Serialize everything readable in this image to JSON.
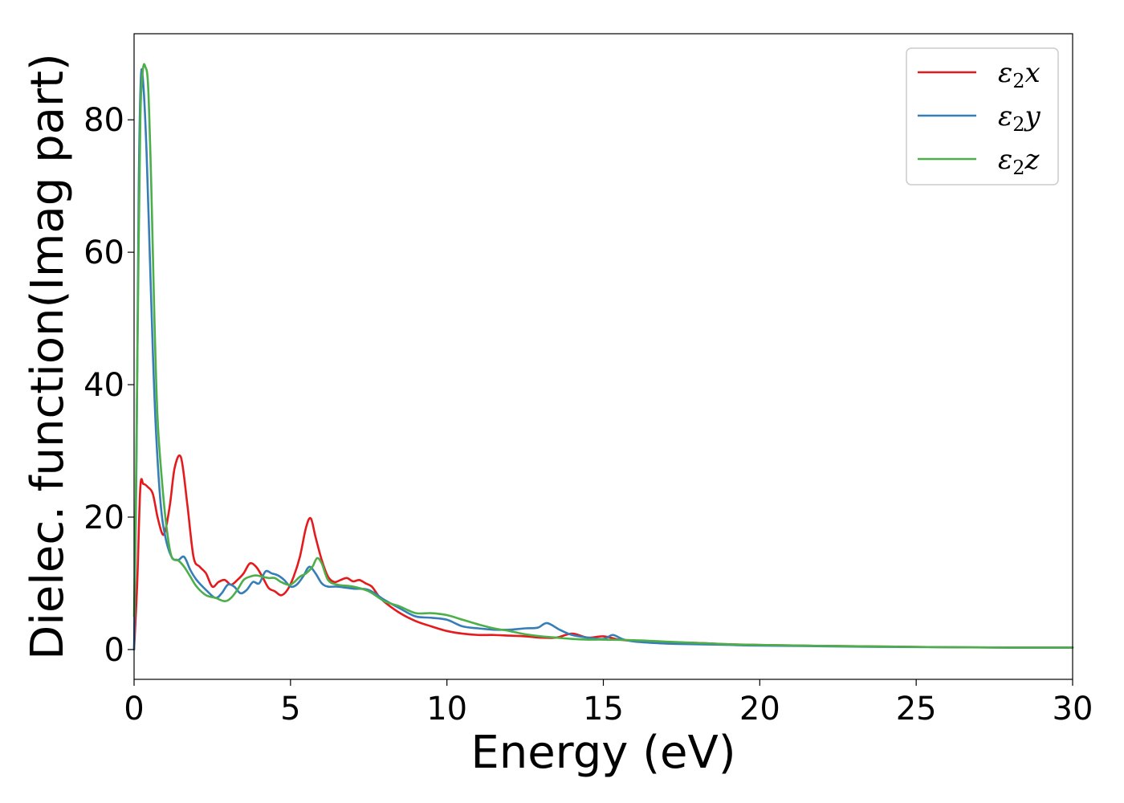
{
  "chart_data": {
    "type": "line",
    "title": "",
    "xlabel": "Energy (eV)",
    "ylabel": "Dielec. function(Imag part)",
    "xlim": [
      0,
      30
    ],
    "ylim": [
      -4.5,
      93
    ],
    "xticks": [
      0,
      5,
      10,
      15,
      20,
      25,
      30
    ],
    "yticks": [
      0,
      20,
      40,
      60,
      80
    ],
    "grid": false,
    "legend_position": "top-right",
    "series": [
      {
        "name": "ε2x",
        "legend_base": "ε",
        "legend_sub": "2",
        "legend_var": "x",
        "color": "#e41a1c",
        "x": [
          0,
          0.1,
          0.2,
          0.3,
          0.45,
          0.6,
          0.75,
          0.9,
          1.0,
          1.15,
          1.3,
          1.5,
          1.7,
          1.9,
          2.1,
          2.3,
          2.5,
          2.7,
          2.9,
          3.1,
          3.3,
          3.5,
          3.7,
          3.9,
          4.1,
          4.3,
          4.5,
          4.7,
          4.9,
          5.1,
          5.3,
          5.5,
          5.65,
          5.8,
          6.0,
          6.2,
          6.4,
          6.6,
          6.8,
          7.0,
          7.2,
          7.4,
          7.6,
          7.8,
          8.0,
          8.5,
          9.0,
          9.5,
          10.0,
          10.5,
          11.0,
          11.5,
          12.0,
          12.5,
          13.0,
          13.5,
          14.0,
          14.5,
          15.0,
          15.5,
          16.0,
          17.0,
          18.0,
          19.0,
          20.0,
          22.0,
          24.0,
          26.0,
          28.0,
          30.0
        ],
        "y": [
          0,
          10,
          24.5,
          25,
          24.5,
          23.5,
          20,
          17.5,
          18,
          22,
          27.5,
          29,
          22,
          14,
          12.5,
          11.5,
          9.5,
          10.2,
          10.5,
          9.8,
          10.5,
          11.5,
          13,
          12.5,
          11,
          9.3,
          8.8,
          8.2,
          9,
          11,
          14,
          18.5,
          19.8,
          17,
          13.5,
          11,
          10.2,
          10.5,
          10.8,
          10.3,
          10.5,
          10,
          9.5,
          8.2,
          7.2,
          5.5,
          4.3,
          3.5,
          2.8,
          2.4,
          2.2,
          2.2,
          2.1,
          2.0,
          1.8,
          1.8,
          2.4,
          1.8,
          2.0,
          1.5,
          1.3,
          1.1,
          1.0,
          0.8,
          0.7,
          0.55,
          0.45,
          0.35,
          0.3,
          0.3
        ]
      },
      {
        "name": "ε2y",
        "legend_base": "ε",
        "legend_sub": "2",
        "legend_var": "y",
        "color": "#377eb8",
        "x": [
          0,
          0.08,
          0.15,
          0.22,
          0.3,
          0.4,
          0.5,
          0.6,
          0.7,
          0.85,
          1.0,
          1.2,
          1.4,
          1.6,
          1.8,
          2.0,
          2.3,
          2.6,
          2.8,
          3.0,
          3.2,
          3.4,
          3.6,
          3.8,
          4.0,
          4.2,
          4.4,
          4.6,
          4.8,
          5.0,
          5.2,
          5.4,
          5.6,
          5.8,
          6.0,
          6.2,
          6.5,
          7.0,
          7.5,
          8.0,
          8.5,
          9.0,
          9.5,
          10.0,
          10.5,
          11.0,
          11.5,
          12.0,
          12.5,
          12.9,
          13.2,
          13.6,
          14.0,
          14.5,
          15.0,
          15.3,
          15.6,
          16.0,
          17.0,
          18.0,
          19.0,
          20.0,
          22.0,
          24.0,
          26.0,
          28.0,
          30.0
        ],
        "y": [
          0,
          30,
          70,
          86.5,
          85,
          75,
          60,
          45,
          33,
          22,
          17,
          14,
          13.5,
          14,
          12,
          10.5,
          9,
          7.8,
          8.5,
          9.8,
          9.5,
          8.5,
          9,
          10.2,
          10,
          11.8,
          11.5,
          11.2,
          10.5,
          9.5,
          9.8,
          11,
          12.5,
          11.5,
          10,
          9.5,
          9.5,
          9.2,
          9,
          7.5,
          6.2,
          5,
          4.8,
          4.5,
          3.5,
          3.2,
          3.0,
          3.0,
          3.2,
          3.3,
          4.0,
          3.0,
          2.2,
          1.8,
          1.6,
          2.2,
          1.6,
          1.2,
          0.9,
          0.8,
          0.7,
          0.6,
          0.5,
          0.4,
          0.35,
          0.3,
          0.3
        ]
      },
      {
        "name": "ε2z",
        "legend_base": "ε",
        "legend_sub": "2",
        "legend_var": "z",
        "color": "#4daf4a",
        "x": [
          0,
          0.05,
          0.12,
          0.2,
          0.28,
          0.36,
          0.45,
          0.55,
          0.65,
          0.75,
          0.9,
          1.05,
          1.2,
          1.4,
          1.6,
          1.8,
          2.0,
          2.3,
          2.6,
          2.9,
          3.1,
          3.3,
          3.5,
          3.7,
          3.9,
          4.1,
          4.3,
          4.5,
          4.7,
          5.0,
          5.3,
          5.5,
          5.7,
          5.85,
          6.0,
          6.2,
          6.5,
          7.0,
          7.5,
          8.0,
          8.5,
          9.0,
          9.5,
          10.0,
          10.5,
          11.0,
          11.5,
          12.0,
          12.5,
          13.0,
          13.5,
          14.0,
          14.5,
          15.0,
          16.0,
          17.0,
          18.0,
          19.0,
          20.0,
          22.0,
          24.0,
          26.0,
          28.0,
          30.0
        ],
        "y": [
          5,
          20,
          50,
          80,
          87.5,
          88,
          85,
          70,
          50,
          35,
          25,
          18,
          14,
          13.5,
          12.5,
          11,
          9.5,
          8.2,
          7.8,
          7.3,
          7.8,
          9,
          10.5,
          11,
          11.2,
          11,
          10.8,
          10.8,
          10.2,
          9.8,
          11,
          11.5,
          12.5,
          13.8,
          13,
          10.5,
          9.8,
          9.5,
          8.8,
          7.3,
          6.5,
          5.5,
          5.5,
          5.2,
          4.5,
          3.8,
          3.2,
          2.8,
          2.3,
          2.0,
          1.8,
          1.6,
          1.5,
          1.5,
          1.4,
          1.2,
          1.0,
          0.8,
          0.7,
          0.55,
          0.45,
          0.35,
          0.3,
          0.3
        ]
      }
    ]
  }
}
